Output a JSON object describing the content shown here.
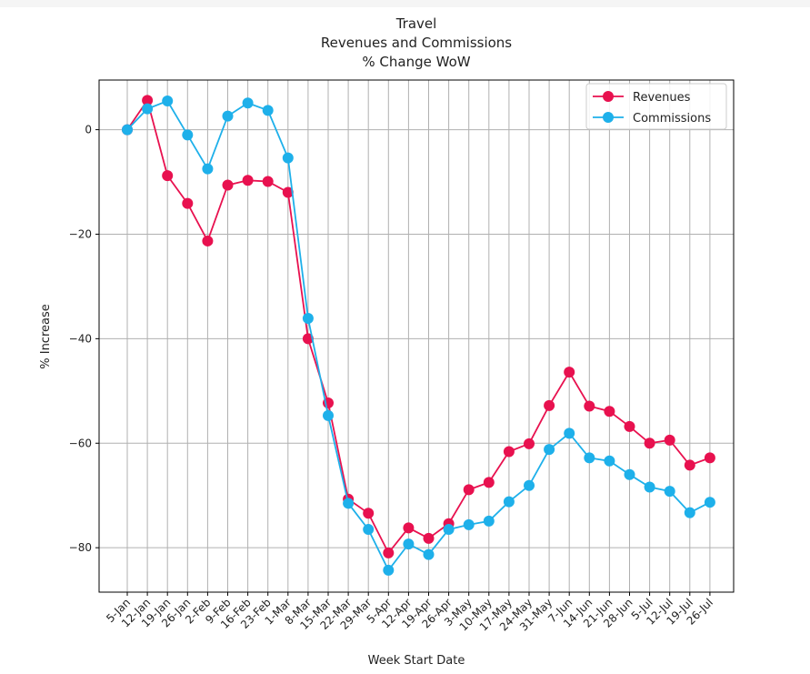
{
  "chart_data": {
    "type": "line",
    "title": [
      "Travel",
      "Revenues and Commissions",
      "% Change WoW"
    ],
    "xlabel": "Week Start Date",
    "ylabel": "% Increase",
    "ylim": [
      -88.5,
      9.5
    ],
    "yticks": [
      0,
      -20,
      -40,
      -60,
      -80
    ],
    "grid": true,
    "legend_position": "top-right",
    "categories": [
      "5-Jan",
      "12-Jan",
      "19-Jan",
      "26-Jan",
      "2-Feb",
      "9-Feb",
      "16-Feb",
      "23-Feb",
      "1-Mar",
      "8-Mar",
      "15-Mar",
      "22-Mar",
      "29-Mar",
      "5-Apr",
      "12-Apr",
      "19-Apr",
      "26-Apr",
      "3-May",
      "10-May",
      "17-May",
      "24-May",
      "31-May",
      "7-Jun",
      "14-Jun",
      "21-Jun",
      "28-Jun",
      "5-Jul",
      "12-Jul",
      "19-Jul",
      "26-Jul"
    ],
    "series": [
      {
        "name": "Revenues",
        "color": "#e8114f",
        "values": [
          0,
          5.6,
          -8.8,
          -14.1,
          -21.3,
          -10.6,
          -9.7,
          -9.9,
          -12.0,
          -40.0,
          -52.3,
          -70.7,
          -73.4,
          -81.0,
          -76.2,
          -78.2,
          -75.4,
          -68.9,
          -67.5,
          -61.6,
          -60.1,
          -52.8,
          -46.4,
          -52.9,
          -53.9,
          -56.8,
          -60.0,
          -59.4,
          -64.2,
          -62.8
        ]
      },
      {
        "name": "Commissions",
        "color": "#1eb0ea",
        "values": [
          0,
          4.0,
          5.5,
          -1.0,
          -7.5,
          2.6,
          5.1,
          3.7,
          -5.4,
          -36.1,
          -54.7,
          -71.5,
          -76.5,
          -84.3,
          -79.3,
          -81.3,
          -76.5,
          -75.6,
          -74.9,
          -71.2,
          -68.1,
          -61.2,
          -58.1,
          -62.8,
          -63.4,
          -66.0,
          -68.4,
          -69.2,
          -73.3,
          -71.3
        ]
      }
    ]
  }
}
